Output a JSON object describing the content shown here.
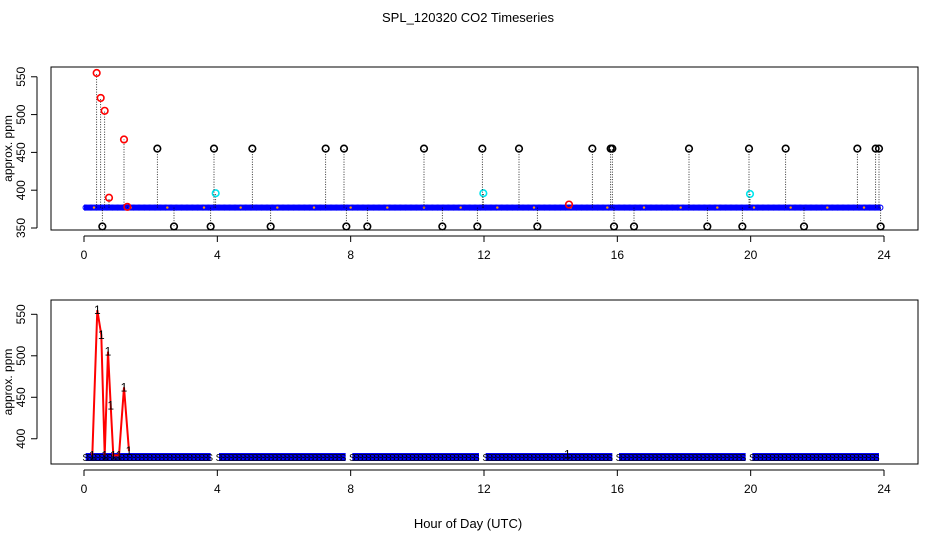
{
  "title": "SPL_120320  CO2 Timeseries",
  "xlabel": "Hour of Day (UTC)",
  "colors": {
    "blue": "#0000ff",
    "red": "#ff0000",
    "cyan": "#00e5ee",
    "black": "#000000",
    "green": "#00c000",
    "orange": "#ff9900"
  },
  "chart_data": [
    {
      "type": "scatter",
      "ylabel": "approx. ppm",
      "xlim": [
        0,
        24
      ],
      "ylim": [
        350,
        555
      ],
      "xticks": [
        0,
        4,
        8,
        12,
        16,
        20,
        24
      ],
      "yticks": [
        350,
        400,
        450,
        500,
        550
      ],
      "baseline": {
        "value": 377,
        "color": "blue",
        "marker": "circle",
        "density": "continuous"
      },
      "series": [
        {
          "color": "red",
          "marker": "circle",
          "points": [
            [
              0.38,
              555
            ],
            [
              0.5,
              522
            ],
            [
              0.62,
              505
            ],
            [
              0.75,
              390
            ],
            [
              1.2,
              467
            ],
            [
              1.3,
              378
            ],
            [
              14.55,
              381
            ]
          ]
        },
        {
          "color": "cyan",
          "marker": "circle",
          "points": [
            [
              3.95,
              396
            ],
            [
              11.98,
              396
            ],
            [
              19.98,
              395
            ]
          ]
        },
        {
          "color": "black",
          "marker": "circle",
          "points": [
            [
              0.55,
              352
            ],
            [
              2.2,
              455
            ],
            [
              2.7,
              352
            ],
            [
              3.8,
              352
            ],
            [
              3.9,
              455
            ],
            [
              5.05,
              455
            ],
            [
              5.6,
              352
            ],
            [
              7.25,
              455
            ],
            [
              7.8,
              455
            ],
            [
              7.87,
              352
            ],
            [
              8.5,
              352
            ],
            [
              10.2,
              455
            ],
            [
              10.75,
              352
            ],
            [
              11.8,
              352
            ],
            [
              11.95,
              455
            ],
            [
              13.05,
              455
            ],
            [
              13.6,
              352
            ],
            [
              15.25,
              455
            ],
            [
              15.8,
              455
            ],
            [
              15.85,
              455
            ],
            [
              15.9,
              352
            ],
            [
              16.5,
              352
            ],
            [
              18.15,
              455
            ],
            [
              18.7,
              352
            ],
            [
              19.75,
              352
            ],
            [
              19.95,
              455
            ],
            [
              21.05,
              455
            ],
            [
              21.6,
              352
            ],
            [
              23.2,
              455
            ],
            [
              23.75,
              455
            ],
            [
              23.85,
              455
            ],
            [
              23.9,
              352
            ]
          ]
        }
      ]
    },
    {
      "type": "line",
      "ylabel": "approx. ppm",
      "xlim": [
        0,
        24
      ],
      "ylim": [
        372,
        560
      ],
      "xticks": [
        0,
        4,
        8,
        12,
        16,
        20,
        24
      ],
      "yticks": [
        400,
        450,
        500,
        550
      ],
      "baseline": {
        "value": 378,
        "color": "blue",
        "marker": "S",
        "density": "continuous"
      },
      "series": [
        {
          "color": "red",
          "marker_label": "1",
          "points": [
            [
              0.25,
              380
            ],
            [
              0.4,
              555
            ],
            [
              0.52,
              525
            ],
            [
              0.62,
              380
            ],
            [
              0.72,
              505
            ],
            [
              0.8,
              440
            ],
            [
              0.88,
              380
            ],
            [
              1.05,
              380
            ],
            [
              1.2,
              462
            ],
            [
              1.35,
              385
            ],
            [
              14.5,
              381
            ]
          ]
        }
      ]
    }
  ]
}
